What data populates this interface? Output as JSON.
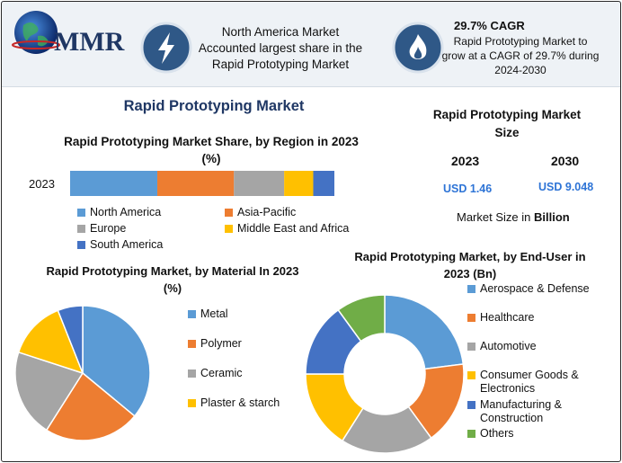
{
  "header": {
    "logo_text": "MMR",
    "region_note": "North America Market Accounted largest share in the Rapid Prototyping Market",
    "cagr_title": "29.7% CAGR",
    "cagr_text": "Rapid Prototyping Market to grow at a CAGR of 29.7% during 2024-2030"
  },
  "main_title": "Rapid Prototyping Market",
  "size_panel": {
    "title": "Rapid Prototyping Market Size",
    "years": [
      "2023",
      "2030"
    ],
    "values": [
      "USD 1.46",
      "USD 9.048"
    ],
    "unit_prefix": "Market Size in ",
    "unit_bold": "Billion"
  },
  "colors": {
    "blue": "#5b9bd5",
    "orange": "#ed7d31",
    "gray": "#a5a5a5",
    "yellow": "#ffc000",
    "darkblue": "#4472c4",
    "green": "#70ad47",
    "navy": "#1f3764",
    "accent": "#2e74d6"
  },
  "chart_data": [
    {
      "type": "bar",
      "orientation": "horizontal-stacked",
      "title": "Rapid Prototyping Market Share, by Region in 2023 (%)",
      "categories": [
        "2023"
      ],
      "series": [
        {
          "name": "North America",
          "values": [
            33
          ],
          "color": "#5b9bd5"
        },
        {
          "name": "Asia-Pacific",
          "values": [
            29
          ],
          "color": "#ed7d31"
        },
        {
          "name": "Europe",
          "values": [
            19
          ],
          "color": "#a5a5a5"
        },
        {
          "name": "Middle East and Africa",
          "values": [
            11
          ],
          "color": "#ffc000"
        },
        {
          "name": "South America",
          "values": [
            8
          ],
          "color": "#4472c4"
        }
      ],
      "legend_placement": "bottom"
    },
    {
      "type": "pie",
      "title": "Rapid Prototyping Market, by Material In 2023 (%)",
      "labels": [
        "Metal",
        "Polymer",
        "Ceramic",
        "Plaster & starch",
        ""
      ],
      "values": [
        36,
        23,
        21,
        14,
        6
      ],
      "colors": [
        "#5b9bd5",
        "#ed7d31",
        "#a5a5a5",
        "#ffc000",
        "#4472c4"
      ],
      "legend_placement": "right"
    },
    {
      "type": "pie",
      "variant": "donut",
      "title": "Rapid Prototyping Market, by End-User in 2023 (Bn)",
      "labels": [
        "Aerospace & Defense",
        "Healthcare",
        "Automotive",
        "Consumer Goods & Electronics",
        "Manufacturing & Construction",
        "Others"
      ],
      "values": [
        23,
        17,
        19,
        16,
        15,
        10
      ],
      "colors": [
        "#5b9bd5",
        "#ed7d31",
        "#a5a5a5",
        "#ffc000",
        "#4472c4",
        "#70ad47"
      ],
      "legend_placement": "right"
    }
  ]
}
